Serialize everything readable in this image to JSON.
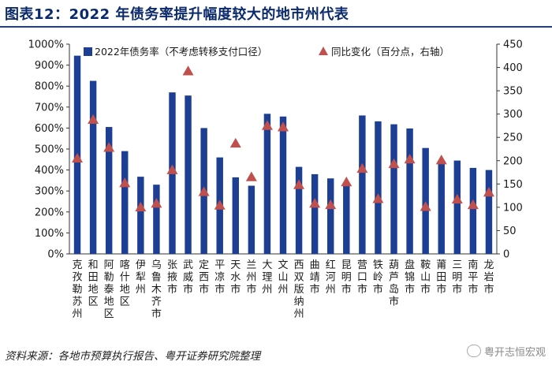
{
  "title": "图表12：2022 年债务率提升幅度较大的地市州代表",
  "source": "资料来源：各地市预算执行报告、粤开证券研究院整理",
  "watermark": "粤开志恒宏观",
  "colors": {
    "bar": "#1c3f94",
    "marker": "#c0504d",
    "title": "#0b2a6b"
  },
  "chart_data": {
    "type": "bar+scatter",
    "legend": {
      "bar_label": "2022年债务率（不考虑转移支付口径）",
      "marker_label": "同比变化（百分点，右轴）",
      "placement": "top"
    },
    "left_axis": {
      "min": 0,
      "max": 1000,
      "step": 100,
      "ticks": [
        "0%",
        "100%",
        "200%",
        "300%",
        "400%",
        "500%",
        "600%",
        "700%",
        "800%",
        "900%",
        "1000%"
      ]
    },
    "right_axis": {
      "min": 0,
      "max": 450,
      "step": 50,
      "ticks": [
        "0",
        "50",
        "100",
        "150",
        "200",
        "250",
        "300",
        "350",
        "400",
        "450"
      ]
    },
    "categories": [
      "克孜勒苏州",
      "和田地区",
      "阿勒泰地区",
      "喀什地区",
      "伊犁州",
      "乌鲁木齐市",
      "张掖市",
      "武威市",
      "定西市",
      "平凉市",
      "天水市",
      "兰州市",
      "大理州",
      "文山州",
      "西双版纳州",
      "曲靖市",
      "红河州",
      "昆明市",
      "营口市",
      "铁岭市",
      "葫芦岛市",
      "盘锦市",
      "鞍山市",
      "莆田市",
      "三明市",
      "南平市",
      "龙岩市"
    ],
    "series": [
      {
        "name": "2022年债务率（不考虑转移支付口径）",
        "axis": "left",
        "type": "bar",
        "values": [
          945,
          825,
          605,
          490,
          368,
          330,
          770,
          755,
          600,
          460,
          365,
          325,
          668,
          655,
          415,
          380,
          360,
          335,
          660,
          632,
          618,
          598,
          505,
          440,
          445,
          410,
          400
        ]
      },
      {
        "name": "同比变化（百分点，右轴）",
        "axis": "right",
        "type": "scatter",
        "values": [
          205,
          288,
          228,
          152,
          100,
          108,
          180,
          392,
          133,
          104,
          237,
          165,
          275,
          272,
          148,
          108,
          105,
          154,
          183,
          118,
          193,
          203,
          101,
          201,
          117,
          105,
          132
        ]
      }
    ]
  }
}
